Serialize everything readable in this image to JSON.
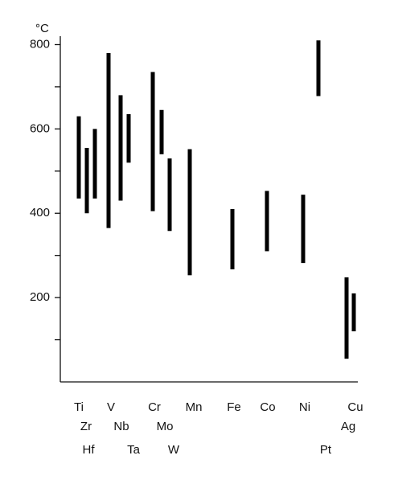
{
  "chart_data": {
    "type": "range_bar",
    "y_unit": "°C",
    "categories": [
      "Ti",
      "Zr",
      "Hf",
      "V",
      "Nb",
      "Ta",
      "Cr",
      "Mo",
      "W",
      "Mn",
      "Fe",
      "Co",
      "Ni",
      "Pt",
      "Cu",
      "Ag"
    ],
    "low": [
      435,
      400,
      435,
      365,
      430,
      520,
      405,
      540,
      358,
      253,
      267,
      310,
      282,
      678,
      55,
      120
    ],
    "high": [
      630,
      555,
      600,
      780,
      680,
      635,
      735,
      645,
      530,
      552,
      410,
      453,
      444,
      810,
      248,
      210
    ],
    "color": "#000000",
    "ylim": [
      0,
      820
    ],
    "yticks": [
      200,
      400,
      600,
      800
    ],
    "minor_yticks": [
      100,
      300,
      500,
      700
    ]
  }
}
